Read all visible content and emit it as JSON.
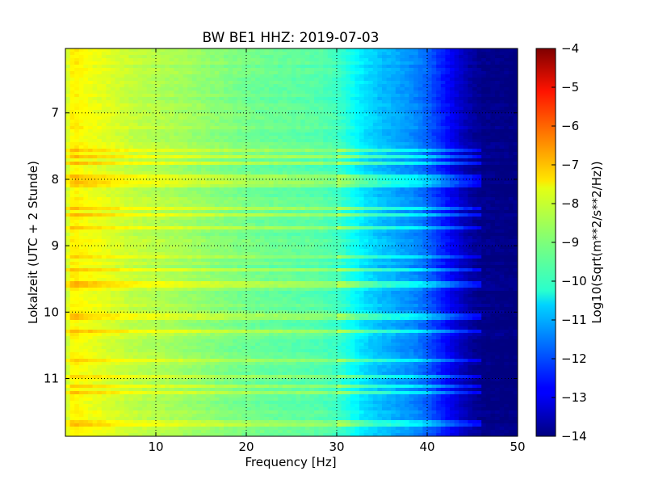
{
  "chart_data": {
    "type": "heatmap",
    "title": "BW BE1 HHZ: 2019-07-03",
    "xlabel": "Frequency [Hz]",
    "ylabel": "Lokalzeit (UTC + 2 Stunde)",
    "xlim": [
      0,
      50
    ],
    "ylim": [
      11.87,
      6.03
    ],
    "y_inverted": true,
    "x_ticks": [
      10,
      20,
      30,
      40,
      50
    ],
    "y_ticks": [
      7,
      8,
      9,
      10,
      11
    ],
    "grid": true,
    "colormap": "jet",
    "colorbar": {
      "label": "Log10(Sqrt(m**2/s**2/Hz))",
      "min": -14,
      "max": -4,
      "ticks": [
        -4,
        -5,
        -6,
        -7,
        -8,
        -9,
        -10,
        -11,
        -12,
        -13,
        -14
      ]
    },
    "spectrum_profile": {
      "frequency_hz": [
        0,
        0.5,
        1,
        2,
        4,
        6,
        8,
        10,
        12,
        15,
        18,
        20,
        22,
        25,
        28,
        30,
        31,
        32,
        33,
        34,
        35,
        36,
        37,
        38,
        39,
        40,
        41,
        42,
        43,
        44,
        45,
        46,
        50
      ],
      "log10_psd": [
        -8.5,
        -7.8,
        -7.6,
        -7.8,
        -8.0,
        -8.2,
        -8.4,
        -8.5,
        -8.6,
        -8.8,
        -9.0,
        -9.1,
        -9.2,
        -9.3,
        -9.4,
        -9.6,
        -9.9,
        -10.2,
        -10.5,
        -10.7,
        -10.9,
        -11.0,
        -11.2,
        -11.3,
        -11.5,
        -11.8,
        -12.2,
        -12.6,
        -13.0,
        -13.4,
        -13.7,
        -13.9,
        -14.0
      ]
    },
    "noise_band_times": [
      7.58,
      7.66,
      7.77,
      7.98,
      8.06,
      8.11,
      8.45,
      8.55,
      8.75,
      9.15,
      9.38,
      9.58,
      10.07,
      10.28,
      10.72,
      10.97,
      11.1,
      11.2,
      11.68
    ]
  }
}
